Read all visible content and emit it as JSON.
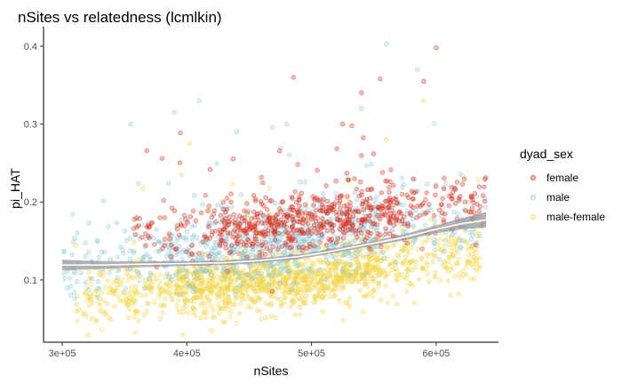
{
  "chart_data": {
    "type": "scatter",
    "title": "nSites vs relatedness (lcmlkin)",
    "xlabel": "nSites",
    "ylabel": "pi_HAT",
    "xlim": [
      285000,
      650000
    ],
    "ylim": [
      0.02,
      0.425
    ],
    "x_ticks": [
      300000,
      400000,
      500000,
      600000
    ],
    "x_tick_labels": [
      "3e+05",
      "4e+05",
      "5e+05",
      "6e+05"
    ],
    "y_ticks": [
      0.1,
      0.2,
      0.3,
      0.4
    ],
    "y_tick_labels": [
      "0.1",
      "0.2",
      "0.3",
      "0.4"
    ],
    "grid": false,
    "legend": {
      "title": "dyad_sex",
      "position": "right"
    },
    "series": [
      {
        "name": "female",
        "color": "#D7301F",
        "approx_points": 700,
        "x_range": [
          355000,
          640000
        ],
        "center_trend": [
          [
            360000,
            0.155
          ],
          [
            450000,
            0.168
          ],
          [
            500000,
            0.178
          ],
          [
            550000,
            0.185
          ],
          [
            600000,
            0.192
          ],
          [
            640000,
            0.195
          ]
        ],
        "spread": 0.018,
        "notable_points": [
          [
            555000,
            0.358
          ],
          [
            600000,
            0.398
          ],
          [
            590000,
            0.355
          ],
          [
            540000,
            0.34
          ],
          [
            525000,
            0.3
          ]
        ]
      },
      {
        "name": "male",
        "color": "#8EC8D9",
        "approx_points": 800,
        "x_range": [
          300000,
          640000
        ],
        "center_trend": [
          [
            300000,
            0.12
          ],
          [
            400000,
            0.135
          ],
          [
            450000,
            0.14
          ],
          [
            500000,
            0.15
          ],
          [
            550000,
            0.165
          ],
          [
            600000,
            0.18
          ]
        ],
        "spread": 0.022,
        "notable_points": [
          [
            560000,
            0.403
          ],
          [
            585000,
            0.37
          ],
          [
            540000,
            0.32
          ],
          [
            410000,
            0.33
          ],
          [
            355000,
            0.3
          ],
          [
            390000,
            0.315
          ],
          [
            440000,
            0.29
          ],
          [
            480000,
            0.3
          ]
        ]
      },
      {
        "name": "male-female",
        "color": "#F2D64B",
        "approx_points": 1400,
        "x_range": [
          310000,
          635000
        ],
        "center_trend": [
          [
            310000,
            0.08
          ],
          [
            400000,
            0.09
          ],
          [
            450000,
            0.095
          ],
          [
            500000,
            0.1
          ],
          [
            550000,
            0.115
          ],
          [
            600000,
            0.13
          ],
          [
            635000,
            0.135
          ]
        ],
        "spread": 0.018,
        "notable_points": [
          [
            590000,
            0.33
          ],
          [
            560000,
            0.28
          ],
          [
            420000,
            0.035
          ],
          [
            460000,
            0.05
          ]
        ]
      }
    ],
    "smooth": {
      "color": "#ffffff",
      "band_color": "#999999",
      "points": [
        [
          300000,
          0.119
        ],
        [
          330000,
          0.119
        ],
        [
          360000,
          0.12
        ],
        [
          400000,
          0.121
        ],
        [
          430000,
          0.122
        ],
        [
          460000,
          0.125
        ],
        [
          490000,
          0.13
        ],
        [
          510000,
          0.135
        ],
        [
          530000,
          0.141
        ],
        [
          550000,
          0.147
        ],
        [
          575000,
          0.155
        ],
        [
          600000,
          0.165
        ],
        [
          620000,
          0.172
        ],
        [
          640000,
          0.177
        ]
      ],
      "band_halfwidth": [
        0.007,
        0.005,
        0.004,
        0.003,
        0.003,
        0.003,
        0.003,
        0.003,
        0.003,
        0.003,
        0.004,
        0.005,
        0.007,
        0.01
      ]
    }
  }
}
